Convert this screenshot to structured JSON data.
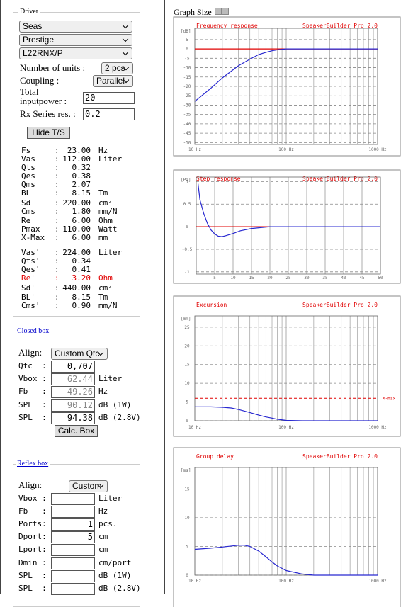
{
  "graph_size_label": "Graph Size",
  "driver": {
    "legend": "Driver",
    "brand": "Seas",
    "series": "Prestige",
    "model": "L22RNX/P",
    "units_label": "Number of units :",
    "units": "2 pcs",
    "coupling_label": "Coupling :",
    "coupling": "Parallel",
    "power_label": "Total inputpower :",
    "power": "20",
    "rx_label": "Rx Series res. :",
    "rx": "0.2",
    "hide_button": "Hide T/S",
    "sep": ":",
    "params": [
      {
        "name": "Fs",
        "value": "23.00",
        "unit": "Hz"
      },
      {
        "name": "Vas",
        "value": "112.00",
        "unit": "Liter"
      },
      {
        "name": "Qts",
        "value": "0.32"
      },
      {
        "name": "Qes",
        "value": "0.38"
      },
      {
        "name": "Qms",
        "value": "2.07"
      },
      {
        "name": "BL",
        "value": "8.15",
        "unit": "Tm"
      },
      {
        "name": "Sd",
        "value": "220.00",
        "unit": "cm²"
      },
      {
        "name": "Cms",
        "value": "1.80",
        "unit": "mm/N"
      },
      {
        "name": "Re",
        "value": "6.00",
        "unit": "Ohm"
      },
      {
        "name": "Pmax",
        "value": "110.00",
        "unit": "Watt"
      },
      {
        "name": "X-Max",
        "value": "6.00",
        "unit": "mm"
      },
      {
        "name": "Vas'",
        "value": "224.00",
        "unit": "Liter"
      },
      {
        "name": "Qts'",
        "value": "0.34"
      },
      {
        "name": "Qes'",
        "value": "0.41"
      },
      {
        "name": "Re'",
        "value": "3.20",
        "unit": "Ohm",
        "color": "#e00000"
      },
      {
        "name": "Sd'",
        "value": "440.00",
        "unit": "cm²"
      },
      {
        "name": "BL'",
        "value": "8.15",
        "unit": "Tm"
      },
      {
        "name": "Cms'",
        "value": "0.90",
        "unit": "mm/N"
      }
    ]
  },
  "closed_box": {
    "legend": "Closed box",
    "align_label": "Align:",
    "align": "Custom Qtc",
    "calc_button": "Calc. Box",
    "rows": [
      {
        "label": "Qtc  :",
        "value": "0,707"
      },
      {
        "label": "Vbox :",
        "value": "62.44",
        "unit": "Liter",
        "disabled": true
      },
      {
        "label": "Fb   :",
        "value": "49.26",
        "unit": "Hz",
        "disabled": true
      },
      {
        "label": "SPL  :",
        "value": "90.12",
        "unit": "dB (1W)",
        "disabled": true
      },
      {
        "label": "SPL  :",
        "value": "94.38",
        "unit": "dB (2.8V)"
      }
    ]
  },
  "reflex_box": {
    "legend": "Reflex box",
    "align_label": "Align:",
    "align": "Custom",
    "rows": [
      {
        "label": "Vbox :",
        "unit": "Liter"
      },
      {
        "label": "Fb   :",
        "unit": "Hz"
      },
      {
        "label": "Ports:",
        "value": "1",
        "unit": "pcs."
      },
      {
        "label": "Dport:",
        "value": "5",
        "unit": "cm"
      },
      {
        "label": "Lport:",
        "unit": "cm"
      },
      {
        "label": "Dmin :",
        "unit": "cm/port"
      },
      {
        "label": "SPL  :",
        "unit": "dB (1W)"
      },
      {
        "label": "SPL  :",
        "unit": "dB (2.8V)"
      }
    ]
  },
  "graphs": [
    {
      "title": "Frequency response",
      "brand": "SpeakerBuilder Pro 2.0",
      "y_unit": "[dB]",
      "x_scale": "log",
      "xlim": [
        10,
        1000
      ],
      "ylim": [
        -51,
        11
      ],
      "yticks": [
        5,
        0,
        -5,
        -10,
        -15,
        -20,
        -25,
        -30,
        -35,
        -40,
        -45,
        -50
      ],
      "xticks": [
        {
          "value": 10,
          "label": "10 Hz"
        },
        {
          "value": 100,
          "label": "100 Hz"
        },
        {
          "value": 1000,
          "label": "1000 Hz"
        }
      ],
      "ref_line": 0,
      "curve": {
        "x": [
          10,
          15,
          20,
          30,
          40,
          50,
          60,
          70,
          80,
          100,
          150,
          1000
        ],
        "y": [
          -28,
          -21,
          -15.5,
          -9,
          -5.5,
          -3,
          -1.8,
          -1,
          -0.5,
          0,
          0,
          0
        ]
      }
    },
    {
      "title": "Step response",
      "brand": "SpeakerBuilder Pro 2.0",
      "y_unit": "[Pa]",
      "x_scale": "linear",
      "xlim": [
        0,
        50
      ],
      "ylim": [
        -1.05,
        1.1
      ],
      "yticks": [
        1,
        0.5,
        0,
        -0.5,
        -1
      ],
      "xticks": [
        5,
        10,
        15,
        20,
        25,
        30,
        35,
        40,
        45,
        50
      ],
      "ref_line": 0,
      "curve": {
        "x": [
          0.5,
          1,
          2,
          3,
          4,
          5,
          6,
          7,
          8,
          10,
          12,
          15,
          20,
          50
        ],
        "y": [
          0.95,
          0.6,
          0.3,
          0.08,
          -0.07,
          -0.16,
          -0.21,
          -0.22,
          -0.2,
          -0.15,
          -0.09,
          -0.04,
          0,
          0
        ]
      }
    },
    {
      "title": "Excursion",
      "brand": "SpeakerBuilder Pro 2.0",
      "y_unit": "[mm]",
      "x_scale": "log",
      "xlim": [
        10,
        1000
      ],
      "ylim": [
        0,
        28
      ],
      "yticks": [
        25,
        20,
        15,
        10,
        5,
        0
      ],
      "xticks": [
        {
          "value": 10,
          "label": "10 Hz"
        },
        {
          "value": 100,
          "label": "100 Hz"
        },
        {
          "value": 1000,
          "label": "1000 Hz"
        }
      ],
      "xmax_line": 6,
      "xmax_label": "X-max",
      "curve": {
        "x": [
          10,
          15,
          20,
          25,
          30,
          40,
          50,
          60,
          70,
          80,
          100,
          150,
          1000
        ],
        "y": [
          3.7,
          3.7,
          3.6,
          3.4,
          3,
          2.2,
          1.5,
          1,
          0.7,
          0.4,
          0.1,
          0,
          0
        ]
      }
    },
    {
      "title": "Group delay",
      "brand": "SpeakerBuilder Pro 2.0",
      "y_unit": "[ms]",
      "x_scale": "log",
      "xlim": [
        10,
        1000
      ],
      "ylim": [
        0,
        18.75
      ],
      "yticks": [
        15,
        10,
        5,
        0
      ],
      "xticks": [
        {
          "value": 10,
          "label": "10 Hz"
        },
        {
          "value": 100,
          "label": "100 Hz"
        },
        {
          "value": 1000,
          "label": "1000 Hz"
        }
      ],
      "curve": {
        "x": [
          10,
          15,
          20,
          30,
          35,
          40,
          50,
          60,
          70,
          80,
          100,
          150,
          200,
          1000
        ],
        "y": [
          4.5,
          4.7,
          4.9,
          5.2,
          5.2,
          5,
          4.2,
          3.2,
          2.3,
          1.6,
          0.8,
          0.2,
          0,
          0
        ]
      }
    }
  ]
}
